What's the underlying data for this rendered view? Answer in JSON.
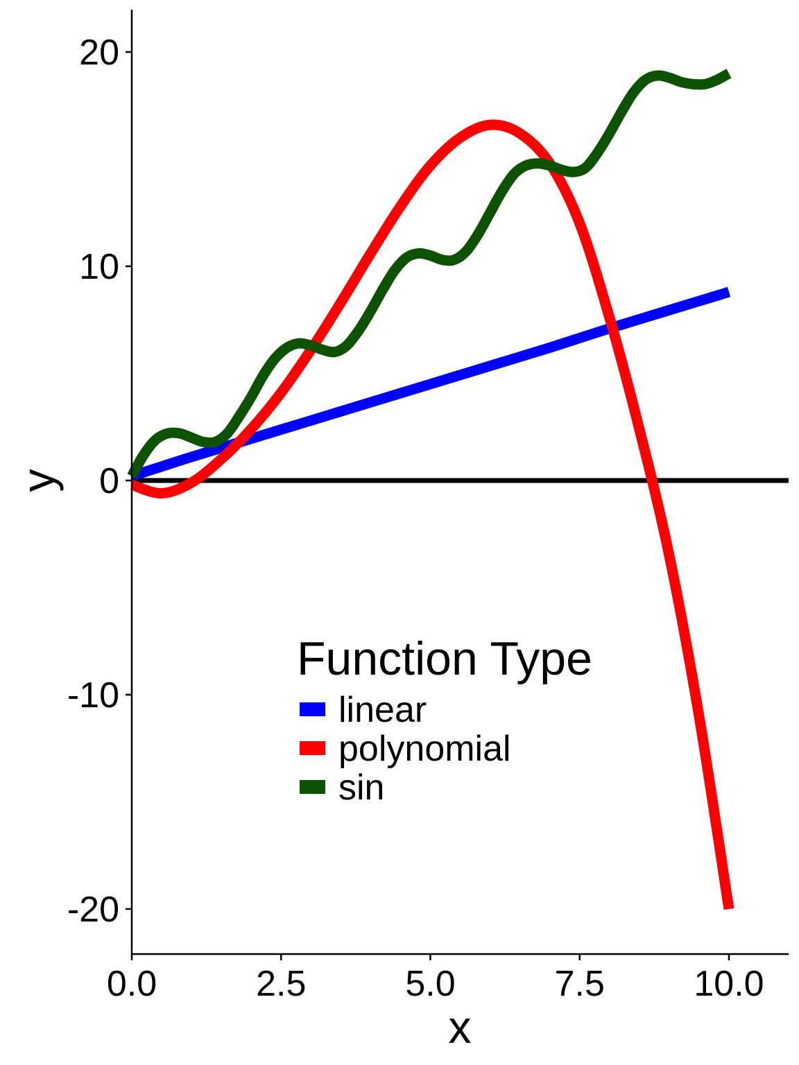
{
  "chart_data": {
    "type": "line",
    "xlabel": "x",
    "ylabel": "y",
    "xlim": [
      0,
      11
    ],
    "ylim": [
      -22,
      22
    ],
    "x_ticks": [
      0,
      2.5,
      5,
      7.5,
      10
    ],
    "x_tick_labels": [
      "0.0",
      "2.5",
      "5.0",
      "7.5",
      "10.0"
    ],
    "y_ticks": [
      -20,
      -10,
      0,
      10,
      20
    ],
    "y_tick_labels": [
      "-20",
      "-10",
      "0",
      "10",
      "20"
    ],
    "grid": false,
    "reference_line": {
      "y": 0,
      "color": "#000000"
    },
    "legend": {
      "title": "Function Type",
      "placement": "inside, lower-center",
      "entries": [
        "linear",
        "polynomial",
        "sin"
      ]
    },
    "series": [
      {
        "name": "linear",
        "color": "#0000ff",
        "x": [
          0,
          1,
          2,
          3,
          4,
          5,
          6,
          7,
          8,
          9,
          10
        ],
        "y": [
          0.2,
          1.1,
          1.95,
          2.8,
          3.65,
          4.5,
          5.35,
          6.2,
          7.1,
          7.95,
          8.8
        ]
      },
      {
        "name": "polynomial",
        "color": "#ff0000",
        "x": [
          0,
          0.5,
          1,
          1.5,
          2,
          2.5,
          3,
          3.5,
          4,
          4.5,
          5,
          5.5,
          6,
          6.5,
          7,
          7.5,
          8,
          8.5,
          9,
          9.5,
          10
        ],
        "y": [
          -0.2,
          -0.6,
          -0.1,
          1.0,
          2.4,
          4.1,
          6.1,
          8.3,
          10.6,
          12.8,
          14.7,
          16.0,
          16.6,
          16.2,
          14.8,
          12.0,
          7.6,
          2.4,
          -3.5,
          -11.0,
          -20.0
        ]
      },
      {
        "name": "sin",
        "color": "#0d5200",
        "x": [
          0,
          0.2,
          0.4,
          0.6,
          0.8,
          1.0,
          1.2,
          1.4,
          1.6,
          1.8,
          2.0,
          2.2,
          2.4,
          2.6,
          2.8,
          3.0,
          3.2,
          3.4,
          3.6,
          3.8,
          4.0,
          4.2,
          4.4,
          4.6,
          4.8,
          5.0,
          5.2,
          5.4,
          5.6,
          5.8,
          6.0,
          6.2,
          6.4,
          6.6,
          6.8,
          7.0,
          7.2,
          7.4,
          7.6,
          7.8,
          8.0,
          8.2,
          8.4,
          8.6,
          8.8,
          9.0,
          9.2,
          9.4,
          9.6,
          9.8,
          10.0
        ],
        "y": [
          0.2,
          1.2,
          1.9,
          2.2,
          2.2,
          2.0,
          1.8,
          1.8,
          2.2,
          3.0,
          3.9,
          4.9,
          5.7,
          6.2,
          6.4,
          6.3,
          6.1,
          6.0,
          6.3,
          7.0,
          7.9,
          8.9,
          9.8,
          10.4,
          10.6,
          10.5,
          10.3,
          10.3,
          10.7,
          11.5,
          12.5,
          13.5,
          14.3,
          14.7,
          14.8,
          14.7,
          14.5,
          14.4,
          14.6,
          15.3,
          16.2,
          17.2,
          18.1,
          18.7,
          18.9,
          18.8,
          18.6,
          18.5,
          18.5,
          18.7,
          19.0
        ]
      }
    ]
  }
}
